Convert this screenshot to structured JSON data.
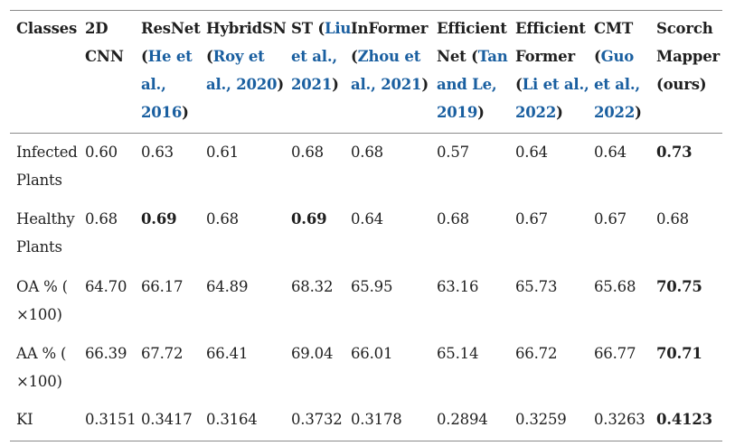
{
  "table": {
    "header": [
      {
        "lines": [
          [
            "Classes"
          ]
        ]
      },
      {
        "lines": [
          [
            "2D"
          ],
          [
            "CNN"
          ]
        ]
      },
      {
        "lines": [
          [
            "ResNet"
          ],
          [
            "(",
            {
              "c": "He et"
            }
          ],
          [
            {
              "c": "al.,"
            }
          ],
          [
            {
              "c": "2016"
            },
            ")"
          ]
        ]
      },
      {
        "lines": [
          [
            "HybridSN"
          ],
          [
            "(",
            {
              "c": "Roy et"
            }
          ],
          [
            {
              "c": "al., 2020"
            },
            ")"
          ]
        ]
      },
      {
        "lines": [
          [
            "ST (",
            {
              "c": "Liu"
            }
          ],
          [
            {
              "c": "et al.,"
            }
          ],
          [
            {
              "c": "2021"
            },
            ")"
          ]
        ]
      },
      {
        "lines": [
          [
            "InFormer"
          ],
          [
            "(",
            {
              "c": "Zhou et"
            }
          ],
          [
            {
              "c": "al., 2021"
            },
            ")"
          ]
        ]
      },
      {
        "lines": [
          [
            "Efficient"
          ],
          [
            "Net (",
            {
              "c": "Tan"
            }
          ],
          [
            {
              "c": "and Le,"
            }
          ],
          [
            {
              "c": "2019"
            },
            ")"
          ]
        ]
      },
      {
        "lines": [
          [
            "Efficient"
          ],
          [
            "Former"
          ],
          [
            "(",
            {
              "c": "Li et al.,"
            }
          ],
          [
            {
              "c": "2022"
            },
            ")"
          ]
        ]
      },
      {
        "lines": [
          [
            "CMT"
          ],
          [
            "(",
            {
              "c": "Guo"
            }
          ],
          [
            {
              "c": "et al.,"
            }
          ],
          [
            {
              "c": "2022"
            },
            ")"
          ]
        ]
      },
      {
        "lines": [
          [
            "Scorch"
          ],
          [
            "Mapper"
          ],
          [
            "(ours)"
          ]
        ]
      }
    ],
    "rows": [
      {
        "label": [
          "Infected",
          "Plants"
        ],
        "values": [
          "0.60",
          "0.63",
          "0.61",
          "0.68",
          "0.68",
          "0.57",
          "0.64",
          "0.64",
          "0.73"
        ],
        "bold": [
          false,
          false,
          false,
          false,
          false,
          false,
          false,
          false,
          true
        ]
      },
      {
        "label": [
          "Healthy",
          "Plants"
        ],
        "values": [
          "0.68",
          "0.69",
          "0.68",
          "0.69",
          "0.64",
          "0.68",
          "0.67",
          "0.67",
          "0.68"
        ],
        "bold": [
          false,
          true,
          false,
          true,
          false,
          false,
          false,
          false,
          false
        ]
      },
      {
        "label": [
          "OA % (",
          "×100)"
        ],
        "values": [
          "64.70",
          "66.17",
          "64.89",
          "68.32",
          "65.95",
          "63.16",
          "65.73",
          "65.68",
          "70.75"
        ],
        "bold": [
          false,
          false,
          false,
          false,
          false,
          false,
          false,
          false,
          true
        ]
      },
      {
        "label": [
          "AA % (",
          "×100)"
        ],
        "values": [
          "66.39",
          "67.72",
          "66.41",
          "69.04",
          "66.01",
          "65.14",
          "66.72",
          "66.77",
          "70.71"
        ],
        "bold": [
          false,
          false,
          false,
          false,
          false,
          false,
          false,
          false,
          true
        ]
      },
      {
        "label": [
          "KI"
        ],
        "values": [
          "0.3151",
          "0.3417",
          "0.3164",
          "0.3732",
          "0.3178",
          "0.2894",
          "0.3259",
          "0.3263",
          "0.4123"
        ],
        "bold": [
          false,
          false,
          false,
          false,
          false,
          false,
          false,
          false,
          true
        ]
      }
    ]
  },
  "colors": {
    "text": "#1f1f1f",
    "citation": "#1a5fa0",
    "rule": "#8a8a8a"
  }
}
